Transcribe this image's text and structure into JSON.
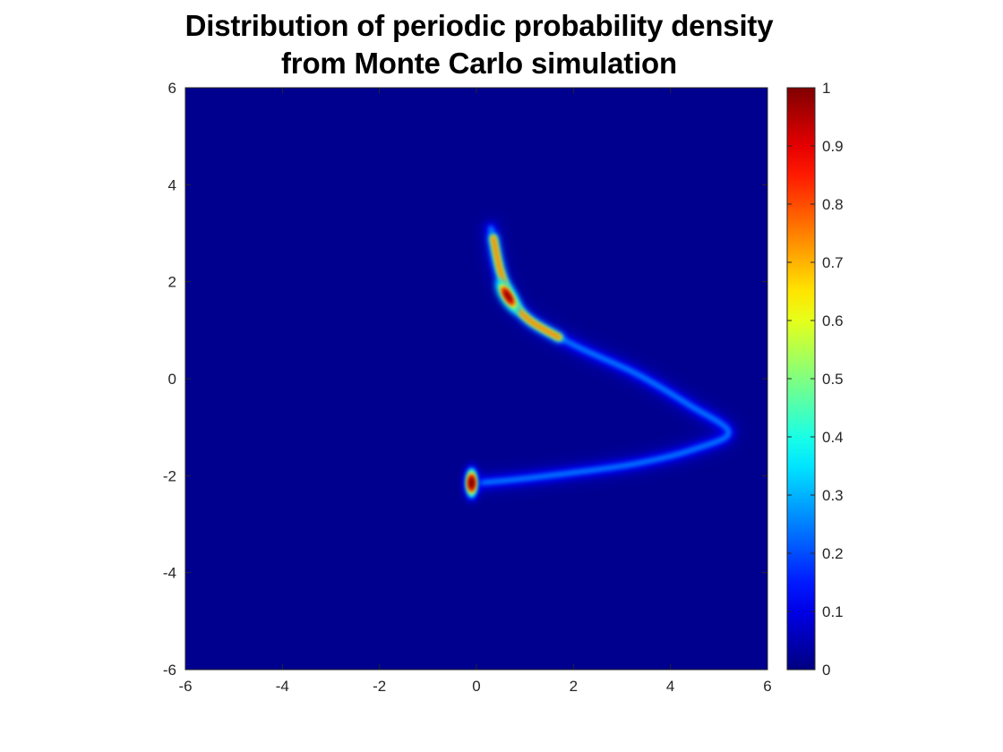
{
  "chart_data": {
    "type": "heatmap",
    "title_lines": [
      "Distribution of periodic probability density",
      "from Monte Carlo simulation"
    ],
    "xlabel": "",
    "ylabel": "",
    "xlim": [
      -6,
      6
    ],
    "ylim": [
      -6,
      6
    ],
    "xticks": [
      -6,
      -4,
      -2,
      0,
      2,
      4,
      6
    ],
    "yticks": [
      -6,
      -4,
      -2,
      0,
      2,
      4,
      6
    ],
    "colormap": "jet",
    "background_color": "#00008f",
    "colorbar": {
      "range": [
        0,
        1
      ],
      "ticks": [
        0,
        0.1,
        0.2,
        0.3,
        0.4,
        0.5,
        0.6,
        0.7,
        0.8,
        0.9,
        1
      ]
    },
    "grid": false,
    "features": [
      {
        "name": "upper peak",
        "x": 0.65,
        "y": 1.7,
        "peak_value": 1.0
      },
      {
        "name": "lower peak",
        "x": -0.1,
        "y": -2.15,
        "peak_value": 1.0
      },
      {
        "name": "arc ridge",
        "path": [
          [
            0.3,
            3.1
          ],
          [
            0.5,
            2.1
          ],
          [
            1.0,
            1.3
          ],
          [
            2.0,
            0.7
          ],
          [
            3.3,
            0.1
          ],
          [
            4.4,
            -0.55
          ],
          [
            5.2,
            -1.1
          ],
          [
            4.5,
            -1.45
          ],
          [
            3.3,
            -1.75
          ],
          [
            1.9,
            -1.95
          ],
          [
            0.8,
            -2.08
          ],
          [
            0.05,
            -2.15
          ]
        ],
        "value": 0.25
      }
    ]
  }
}
